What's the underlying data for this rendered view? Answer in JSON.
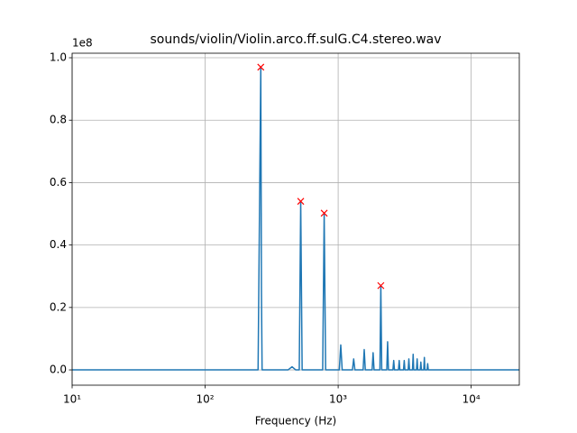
{
  "chart_data": {
    "type": "line",
    "title": "sounds/violin/Violin.arco.ff.sulG.C4.stereo.wav",
    "xlabel": "Frequency (Hz)",
    "y_offset_label": "1e8",
    "xscale": "log",
    "grid": true,
    "xlim": [
      10,
      23000
    ],
    "ylim": [
      -4900000,
      101450000
    ],
    "xticks": [
      {
        "value": 10,
        "label": "10¹"
      },
      {
        "value": 100,
        "label": "10²"
      },
      {
        "value": 1000,
        "label": "10³"
      },
      {
        "value": 10000,
        "label": "10⁴"
      }
    ],
    "yticks": [
      {
        "value": 0,
        "label": "0.0"
      },
      {
        "value": 20000000,
        "label": "0.2"
      },
      {
        "value": 40000000,
        "label": "0.4"
      },
      {
        "value": 60000000,
        "label": "0.6"
      },
      {
        "value": 80000000,
        "label": "0.8"
      },
      {
        "value": 100000000,
        "label": "1.0"
      }
    ],
    "series": [
      {
        "color": "#1f77b4",
        "x": [
          10,
          250,
          262,
          265,
          268,
          420,
          450,
          480,
          510,
          523,
          536,
          765,
          785,
          805,
          1020,
          1046,
          1072,
          1280,
          1308,
          1336,
          1540,
          1570,
          1600,
          1800,
          1831,
          1862,
          2060,
          2093,
          2126,
          2320,
          2354,
          2388,
          2580,
          2616,
          2650,
          2840,
          2877,
          2910,
          3100,
          3139,
          3175,
          3360,
          3400,
          3440,
          3620,
          3662,
          3700,
          3880,
          3924,
          3965,
          4140,
          4185,
          4225,
          4400,
          4447,
          4490,
          4660,
          4709,
          4760,
          23000
        ],
        "values": [
          0,
          0,
          97000000,
          26000000,
          0,
          0,
          1000000,
          0,
          0,
          54000000,
          0,
          0,
          50000000,
          0,
          0,
          8000000,
          0,
          0,
          3500000,
          0,
          0,
          6500000,
          0,
          0,
          5500000,
          0,
          0,
          27000000,
          0,
          0,
          9000000,
          0,
          0,
          3000000,
          0,
          0,
          3000000,
          0,
          0,
          3000000,
          0,
          0,
          3500000,
          0,
          0,
          5000000,
          0,
          0,
          3500000,
          0,
          0,
          2500000,
          0,
          0,
          4000000,
          0,
          0,
          2000000,
          0,
          0
        ]
      },
      {
        "color": "#ff0000",
        "marker": "x",
        "x": [
          262,
          523,
          785,
          2093
        ],
        "values": [
          97000000,
          54000000,
          50200000,
          27000000
        ]
      }
    ]
  }
}
